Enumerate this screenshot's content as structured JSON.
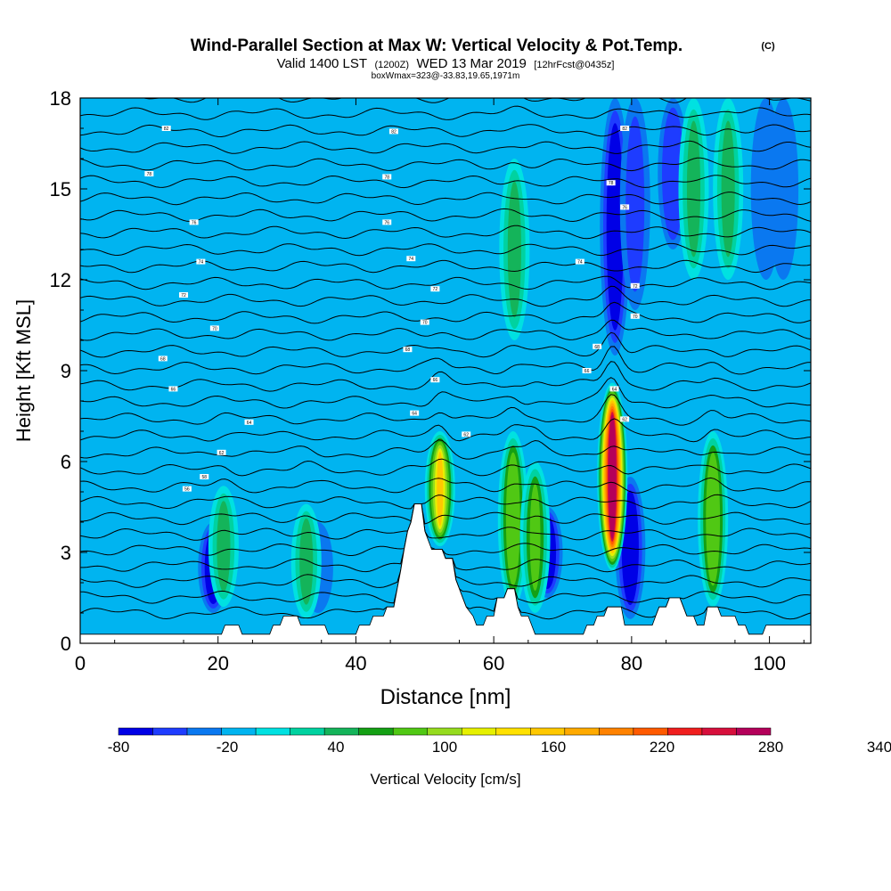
{
  "header": {
    "title": "Wind-Parallel Section at Max W: Vertical Velocity & Pot.Temp.",
    "copyright": "(C)",
    "valid_pre": "Valid 1400 LST",
    "valid_utc": "(1200Z)",
    "valid_date": "WED 13 Mar 2019",
    "forecast": "[12hrFcst@0435z]",
    "box_info": "boxWmax=323@-33.83,19.65,1971m"
  },
  "chart_data": {
    "type": "heatmap",
    "title": "Wind-Parallel Section at Max W: Vertical Velocity & Pot.Temp.",
    "xlabel": "Distance [nm]",
    "ylabel": "Height [Kft MSL]",
    "xlim": [
      0,
      106
    ],
    "ylim": [
      0,
      18
    ],
    "x_ticks": [
      0,
      20,
      40,
      60,
      80,
      100
    ],
    "y_ticks": [
      0,
      3,
      6,
      9,
      12,
      15,
      18
    ],
    "background_w": -10,
    "colorbar": {
      "label": "Vertical Velocity [cm/s]",
      "min": -80,
      "step": 20,
      "tick_labels": [
        "-80",
        "-20",
        "40",
        "100",
        "160",
        "220",
        "280",
        "340"
      ],
      "colors": [
        "#0000e6",
        "#1e3cff",
        "#0a78f0",
        "#00b4f0",
        "#00e1e1",
        "#00d2a0",
        "#14b45a",
        "#14a014",
        "#50c814",
        "#96dc1e",
        "#e6f000",
        "#ffe100",
        "#ffc800",
        "#ffaa00",
        "#ff8200",
        "#ff5a00",
        "#f01e1e",
        "#d70f3c",
        "#b4005a"
      ]
    },
    "updrafts": [
      {
        "x": 20.8,
        "ymin": 1.2,
        "ymax": 5.2,
        "w": 55
      },
      {
        "x": 32.8,
        "ymin": 0.8,
        "ymax": 4.6,
        "w": 55
      },
      {
        "x": 52.2,
        "ymin": 3.2,
        "ymax": 7.0,
        "w": 160
      },
      {
        "x": 62.8,
        "ymin": 1.2,
        "ymax": 7.0,
        "w": 95
      },
      {
        "x": 66.0,
        "ymin": 1.0,
        "ymax": 6.0,
        "w": 85
      },
      {
        "x": 77.2,
        "ymin": 2.4,
        "ymax": 8.6,
        "w": 323
      },
      {
        "x": 91.8,
        "ymin": 1.2,
        "ymax": 7.0,
        "w": 90
      },
      {
        "x": 63.0,
        "ymin": 10.0,
        "ymax": 16.0,
        "w": 40
      },
      {
        "x": 89.0,
        "ymin": 12.0,
        "ymax": 18.0,
        "w": 40
      },
      {
        "x": 94.0,
        "ymin": 12.0,
        "ymax": 18.0,
        "w": 40
      }
    ],
    "downdrafts": [
      {
        "x": 19.3,
        "ymin": 1.0,
        "ymax": 4.0,
        "w": -75
      },
      {
        "x": 34.5,
        "ymin": 1.0,
        "ymax": 4.0,
        "w": -40
      },
      {
        "x": 67.8,
        "ymin": 1.5,
        "ymax": 4.5,
        "w": -70
      },
      {
        "x": 79.8,
        "ymin": 0.8,
        "ymax": 5.5,
        "w": -80
      },
      {
        "x": 77.6,
        "ymin": 9.5,
        "ymax": 18.0,
        "w": -75
      },
      {
        "x": 80.5,
        "ymin": 11.0,
        "ymax": 18.0,
        "w": -45
      },
      {
        "x": 86.0,
        "ymin": 13.0,
        "ymax": 18.0,
        "w": -55
      },
      {
        "x": 99.5,
        "ymin": 12.0,
        "ymax": 18.0,
        "w": -40
      },
      {
        "x": 102.0,
        "ymin": 12.0,
        "ymax": 18.0,
        "w": -40
      }
    ],
    "terrain": [
      [
        0,
        0.3
      ],
      [
        20.5,
        0.3
      ],
      [
        21,
        0.6
      ],
      [
        23,
        0.6
      ],
      [
        23.5,
        0.3
      ],
      [
        27.5,
        0.3
      ],
      [
        28,
        0.6
      ],
      [
        29,
        0.6
      ],
      [
        29.5,
        0.9
      ],
      [
        31.5,
        0.9
      ],
      [
        32,
        0.6
      ],
      [
        35.5,
        0.6
      ],
      [
        36,
        0.3
      ],
      [
        40,
        0.3
      ],
      [
        40.5,
        0.6
      ],
      [
        42,
        0.6
      ],
      [
        42.5,
        0.9
      ],
      [
        44,
        0.9
      ],
      [
        44.5,
        1.2
      ],
      [
        45.5,
        1.2
      ],
      [
        46,
        1.8
      ],
      [
        46.5,
        2.4
      ],
      [
        47,
        3.1
      ],
      [
        47.5,
        3.7
      ],
      [
        48,
        4.0
      ],
      [
        48.5,
        4.6
      ],
      [
        49.5,
        4.6
      ],
      [
        50,
        3.7
      ],
      [
        51,
        3.1
      ],
      [
        52.5,
        3.1
      ],
      [
        53,
        2.8
      ],
      [
        54,
        2.8
      ],
      [
        54.5,
        2.1
      ],
      [
        55,
        1.8
      ],
      [
        55.5,
        1.5
      ],
      [
        56,
        1.2
      ],
      [
        57,
        0.9
      ],
      [
        57.5,
        0.6
      ],
      [
        58.5,
        0.6
      ],
      [
        59,
        0.9
      ],
      [
        60,
        0.9
      ],
      [
        60.5,
        1.5
      ],
      [
        61.5,
        1.5
      ],
      [
        62,
        1.8
      ],
      [
        63,
        1.8
      ],
      [
        63.5,
        1.2
      ],
      [
        64,
        0.9
      ],
      [
        65,
        0.9
      ],
      [
        65.5,
        0.6
      ],
      [
        66,
        0.3
      ],
      [
        73,
        0.3
      ],
      [
        73.5,
        0.6
      ],
      [
        74.5,
        0.6
      ],
      [
        75,
        0.9
      ],
      [
        76,
        0.9
      ],
      [
        76.5,
        1.2
      ],
      [
        78.5,
        1.2
      ],
      [
        79,
        0.6
      ],
      [
        83,
        0.6
      ],
      [
        83.5,
        0.9
      ],
      [
        84,
        1.2
      ],
      [
        85,
        1.2
      ],
      [
        85.5,
        1.5
      ],
      [
        87,
        1.5
      ],
      [
        87.5,
        1.2
      ],
      [
        88,
        0.9
      ],
      [
        89,
        0.9
      ],
      [
        89.5,
        0.6
      ],
      [
        90.5,
        0.6
      ],
      [
        91,
        1.2
      ],
      [
        92.5,
        1.2
      ],
      [
        93,
        0.9
      ],
      [
        95,
        0.9
      ],
      [
        95.5,
        0.6
      ],
      [
        96.5,
        0.6
      ],
      [
        97,
        0.3
      ],
      [
        99,
        0.3
      ],
      [
        99.5,
        0.6
      ],
      [
        106,
        0.6
      ]
    ],
    "isentropes": {
      "count": 34,
      "contour_labels": [
        {
          "x": 15.5,
          "y": 5.1,
          "text": "56"
        },
        {
          "x": 18,
          "y": 5.5,
          "text": "58"
        },
        {
          "x": 20.5,
          "y": 6.3,
          "text": "62"
        },
        {
          "x": 24.5,
          "y": 7.3,
          "text": "64"
        },
        {
          "x": 13.5,
          "y": 8.4,
          "text": "66"
        },
        {
          "x": 12,
          "y": 9.4,
          "text": "68"
        },
        {
          "x": 19.5,
          "y": 10.4,
          "text": "70"
        },
        {
          "x": 15,
          "y": 11.5,
          "text": "72"
        },
        {
          "x": 17.5,
          "y": 12.6,
          "text": "74"
        },
        {
          "x": 16.5,
          "y": 13.9,
          "text": "76"
        },
        {
          "x": 10,
          "y": 15.5,
          "text": "78"
        },
        {
          "x": 12.5,
          "y": 17.0,
          "text": "82"
        },
        {
          "x": 48.5,
          "y": 7.6,
          "text": "64"
        },
        {
          "x": 56,
          "y": 6.9,
          "text": "62"
        },
        {
          "x": 51.5,
          "y": 8.7,
          "text": "66"
        },
        {
          "x": 47.5,
          "y": 9.7,
          "text": "68"
        },
        {
          "x": 50,
          "y": 10.6,
          "text": "70"
        },
        {
          "x": 51.5,
          "y": 11.7,
          "text": "72"
        },
        {
          "x": 48,
          "y": 12.7,
          "text": "74"
        },
        {
          "x": 44.5,
          "y": 13.9,
          "text": "76"
        },
        {
          "x": 44.5,
          "y": 15.4,
          "text": "78"
        },
        {
          "x": 45.5,
          "y": 16.9,
          "text": "82"
        },
        {
          "x": 72.5,
          "y": 12.6,
          "text": "74"
        },
        {
          "x": 75,
          "y": 9.8,
          "text": "68"
        },
        {
          "x": 73.5,
          "y": 9.0,
          "text": "66"
        },
        {
          "x": 77.5,
          "y": 8.4,
          "text": "64"
        },
        {
          "x": 79,
          "y": 7.4,
          "text": "62"
        },
        {
          "x": 80.5,
          "y": 10.8,
          "text": "70"
        },
        {
          "x": 80.5,
          "y": 11.8,
          "text": "72"
        },
        {
          "x": 79,
          "y": 14.4,
          "text": "76"
        },
        {
          "x": 77,
          "y": 15.2,
          "text": "78"
        },
        {
          "x": 79,
          "y": 17.0,
          "text": "82"
        }
      ]
    }
  }
}
